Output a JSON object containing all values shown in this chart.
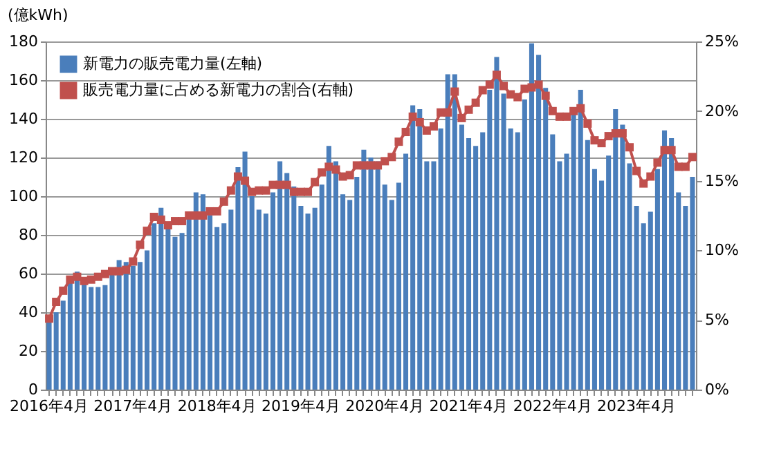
{
  "chart_data": {
    "type": "bar",
    "ylabel": "(億kWh)",
    "categories": [
      "2016年4月",
      null,
      null,
      null,
      null,
      null,
      null,
      null,
      null,
      null,
      null,
      null,
      "2017年4月",
      null,
      null,
      null,
      null,
      null,
      null,
      null,
      null,
      null,
      null,
      null,
      "2018年4月",
      null,
      null,
      null,
      null,
      null,
      null,
      null,
      null,
      null,
      null,
      null,
      "2019年4月",
      null,
      null,
      null,
      null,
      null,
      null,
      null,
      null,
      null,
      null,
      null,
      "2020年4月",
      null,
      null,
      null,
      null,
      null,
      null,
      null,
      null,
      null,
      null,
      null,
      "2021年4月",
      null,
      null,
      null,
      null,
      null,
      null,
      null,
      null,
      null,
      null,
      null,
      "2022年4月",
      null,
      null,
      null,
      null,
      null,
      null,
      null,
      null,
      null,
      null,
      null,
      "2023年4月",
      null,
      null,
      null,
      null,
      null,
      null,
      null,
      null
    ],
    "series": [
      {
        "name": "新電力の販売電力量(左軸)",
        "color": "#4a7ebb",
        "values": [
          36,
          40,
          46,
          55,
          61,
          56,
          53,
          53,
          54,
          60,
          67,
          66,
          64,
          66,
          72,
          86,
          94,
          85,
          79,
          81,
          88,
          102,
          101,
          90,
          84,
          86,
          93,
          115,
          123,
          100,
          93,
          91,
          102,
          118,
          112,
          105,
          95,
          91,
          94,
          106,
          126,
          118,
          101,
          98,
          110,
          124,
          120,
          118,
          106,
          98,
          107,
          122,
          147,
          145,
          118,
          118,
          135,
          163,
          163,
          137,
          130,
          126,
          133,
          155,
          172,
          153,
          135,
          133,
          150,
          179,
          173,
          156,
          132,
          118,
          122,
          143,
          155,
          129,
          114,
          108,
          121,
          145,
          137,
          117,
          95,
          86,
          92,
          114,
          134,
          130,
          102,
          95,
          110
        ]
      },
      {
        "name": "販売電力量に占める新電力の割合(右軸)",
        "type": "line",
        "axis": "y2",
        "marker": "square",
        "color": "#c0504d",
        "values": [
          5.1,
          6.3,
          7.1,
          7.9,
          8.1,
          7.8,
          7.9,
          8.1,
          8.3,
          8.5,
          8.5,
          8.6,
          9.2,
          10.4,
          11.4,
          12.4,
          12.2,
          11.8,
          12.1,
          12.1,
          12.5,
          12.5,
          12.5,
          12.8,
          12.8,
          13.5,
          14.3,
          15.3,
          15.0,
          14.2,
          14.3,
          14.3,
          14.7,
          14.7,
          14.7,
          14.2,
          14.2,
          14.2,
          14.9,
          15.6,
          16.0,
          15.8,
          15.3,
          15.4,
          16.1,
          16.1,
          16.1,
          16.1,
          16.4,
          16.7,
          17.8,
          18.5,
          19.6,
          19.2,
          18.6,
          18.9,
          19.9,
          19.9,
          21.4,
          19.5,
          20.1,
          20.6,
          21.5,
          21.9,
          22.6,
          21.8,
          21.2,
          21.0,
          21.6,
          21.7,
          21.9,
          21.1,
          20.0,
          19.6,
          19.6,
          20.0,
          20.2,
          19.1,
          17.9,
          17.7,
          18.2,
          18.4,
          18.4,
          17.4,
          15.7,
          14.8,
          15.3,
          16.3,
          17.2,
          17.2,
          16.0,
          16.0,
          16.7
        ]
      }
    ],
    "ylim": [
      0,
      180
    ],
    "yticks": [
      0,
      20,
      40,
      60,
      80,
      100,
      120,
      140,
      160,
      180
    ],
    "y2lim": [
      0,
      25
    ],
    "y2ticks": [
      {
        "value": 0,
        "label": "0%"
      },
      {
        "value": 5,
        "label": "5%"
      },
      {
        "value": 10,
        "label": "10%"
      },
      {
        "value": 15,
        "label": "15%"
      },
      {
        "value": 20,
        "label": "20%"
      },
      {
        "value": 25,
        "label": "25%"
      }
    ],
    "grid": "y",
    "legend": "top left"
  }
}
